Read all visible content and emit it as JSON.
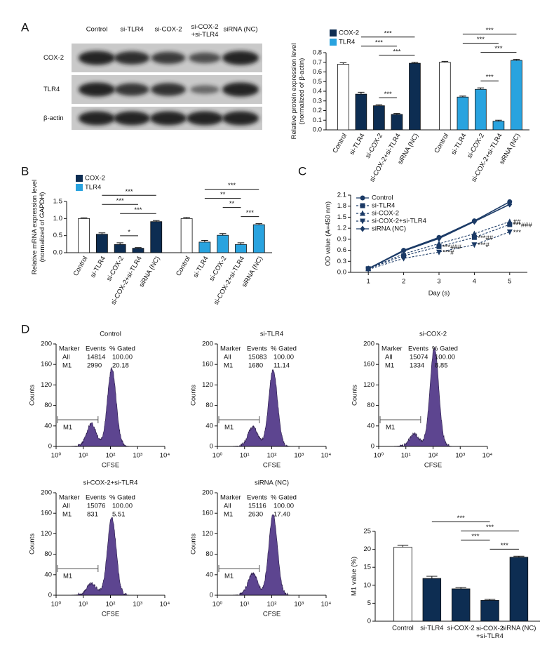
{
  "panel_labels": [
    "A",
    "B",
    "C",
    "D"
  ],
  "blot": {
    "columns": [
      "Control",
      "si-TLR4",
      "si-COX-2",
      "si-COX-2\n+si-TLR4",
      "siRNA (NC)"
    ],
    "rows": [
      "COX-2",
      "TLR4",
      "β-actin"
    ]
  },
  "chart_data": [
    {
      "type": "bar",
      "ylabel": "Relative protein expression level\n(normalized of β-actin)",
      "categories": [
        "Control",
        "si-TLR4",
        "si-COX-2",
        "si-COX-2+si-TLR4",
        "siRNA (NC)"
      ],
      "ylim": [
        0,
        0.8
      ],
      "yticks": [
        {
          "value": 0,
          "label": "0.0"
        },
        0.1,
        0.2,
        0.3,
        0.4,
        0.5,
        0.6,
        0.7,
        0.8
      ],
      "series": [
        {
          "name": "COX-2",
          "color": "#0d2d52",
          "colors": [
            "#ffffff",
            "#0d2d52",
            "#0d2d52",
            "#0d2d52",
            "#0d2d52"
          ],
          "values": [
            0.68,
            0.37,
            0.25,
            0.16,
            0.69
          ],
          "errors": [
            0.015,
            0.02,
            0.01,
            0.01,
            0.01
          ],
          "annotations": [
            {
              "text": "***",
              "span": [
                1,
                4
              ]
            },
            {
              "text": "***",
              "span": [
                2,
                4
              ]
            },
            {
              "text": "***",
              "span": [
                1,
                3
              ]
            },
            {
              "text": "***",
              "span": [
                2,
                3
              ]
            }
          ]
        },
        {
          "name": "TLR4",
          "color": "#29a3df",
          "colors": [
            "#ffffff",
            "#29a3df",
            "#29a3df",
            "#29a3df",
            "#29a3df"
          ],
          "values": [
            0.7,
            0.34,
            0.42,
            0.09,
            0.72
          ],
          "errors": [
            0.01,
            0.01,
            0.015,
            0.01,
            0.01
          ],
          "annotations": [
            {
              "text": "***",
              "span": [
                1,
                4
              ]
            },
            {
              "text": "***",
              "span": [
                2,
                4
              ]
            },
            {
              "text": "***",
              "span": [
                1,
                3
              ]
            },
            {
              "text": "***",
              "span": [
                2,
                3
              ]
            }
          ]
        }
      ]
    },
    {
      "type": "bar",
      "ylabel": "Relative mRNA expression level\n(normalized of GAPDH)",
      "categories": [
        "Control",
        "si-TLR4",
        "si-COX-2",
        "si-COX-2+si-TLR4",
        "siRNA (NC)"
      ],
      "ylim": [
        0,
        1.5
      ],
      "yticks": [
        {
          "value": 0,
          "label": "0.0"
        },
        0.5,
        {
          "value": 1,
          "label": "1.0"
        },
        1.5
      ],
      "series": [
        {
          "name": "COX-2",
          "color": "#0d2d52",
          "colors": [
            "#ffffff",
            "#0d2d52",
            "#0d2d52",
            "#0d2d52",
            "#0d2d52"
          ],
          "values": [
            1.0,
            0.54,
            0.24,
            0.13,
            0.91
          ],
          "errors": [
            0.02,
            0.04,
            0.05,
            0.02,
            0.03
          ],
          "annotations": [
            {
              "text": "***",
              "span": [
                1,
                4
              ]
            },
            {
              "text": "***",
              "span": [
                2,
                4
              ]
            },
            {
              "text": "***",
              "span": [
                1,
                3
              ]
            },
            {
              "text": "*",
              "span": [
                2,
                3
              ]
            }
          ]
        },
        {
          "name": "TLR4",
          "color": "#29a3df",
          "colors": [
            "#ffffff",
            "#29a3df",
            "#29a3df",
            "#29a3df",
            "#29a3df"
          ],
          "values": [
            1.0,
            0.31,
            0.51,
            0.24,
            0.82
          ],
          "errors": [
            0.03,
            0.05,
            0.05,
            0.05,
            0.03
          ],
          "annotations": [
            {
              "text": "***",
              "span": [
                1,
                4
              ]
            },
            {
              "text": "***",
              "span": [
                3,
                4
              ]
            },
            {
              "text": "**",
              "span": [
                1,
                3
              ]
            },
            {
              "text": "**",
              "span": [
                2,
                3
              ]
            }
          ]
        }
      ]
    },
    {
      "type": "line",
      "xlabel": "Day (s)",
      "ylabel": "OD value (A=450 nm)",
      "x": [
        1,
        2,
        3,
        4,
        5
      ],
      "xlim": [
        0.5,
        5.5
      ],
      "xticks": [
        1,
        2,
        3,
        4,
        5
      ],
      "ylim": [
        0,
        2.1
      ],
      "yticks": [
        {
          "value": 0,
          "label": "0.0"
        },
        0.3,
        0.6,
        0.9,
        1.2,
        1.5,
        1.8,
        2.1
      ],
      "series": [
        {
          "name": "Control",
          "color": "#1b3a66",
          "marker": "circle",
          "dashed": false,
          "values": [
            0.1,
            0.6,
            0.95,
            1.4,
            1.92
          ],
          "errors": [
            0.03,
            0.05,
            0.06,
            0.05,
            0.04
          ]
        },
        {
          "name": "si-TLR4",
          "color": "#1b3a66",
          "marker": "square",
          "dashed": true,
          "values": [
            0.1,
            0.45,
            0.7,
            0.95,
            1.3
          ],
          "errors": [
            0.03,
            0.04,
            0.05,
            0.05,
            0.05
          ]
        },
        {
          "name": "si-COX-2",
          "color": "#1b3a66",
          "marker": "triangle",
          "dashed": true,
          "values": [
            0.1,
            0.5,
            0.78,
            1.05,
            1.38
          ],
          "errors": [
            0.03,
            0.04,
            0.05,
            0.05,
            0.05
          ]
        },
        {
          "name": "si-COX-2+si-TLR4",
          "color": "#1b3a66",
          "marker": "triangle-down",
          "dashed": true,
          "values": [
            0.08,
            0.38,
            0.55,
            0.75,
            1.1
          ],
          "errors": [
            0.03,
            0.04,
            0.04,
            0.05,
            0.05
          ]
        },
        {
          "name": "siRNA (NC)",
          "color": "#1b3a66",
          "marker": "diamond",
          "dashed": false,
          "values": [
            0.1,
            0.58,
            0.92,
            1.38,
            1.85
          ],
          "errors": [
            0.03,
            0.05,
            0.05,
            0.05,
            0.04
          ]
        }
      ],
      "annotations": [
        {
          "text": "***###",
          "series": 1,
          "index": 2
        },
        {
          "text": "***#",
          "series": 3,
          "index": 2
        },
        {
          "text": "***##",
          "series": 1,
          "index": 3
        },
        {
          "text": "***#",
          "series": 3,
          "index": 3
        },
        {
          "text": "***###",
          "series": 1,
          "index": 4
        },
        {
          "text": "##",
          "series": 2,
          "index": 4
        },
        {
          "text": "***",
          "series": 3,
          "index": 4
        }
      ]
    },
    {
      "type": "bar",
      "ylabel": "M1 value (%)",
      "categories": [
        "Control",
        "si-TLR4",
        "si-COX-2",
        "si-COX-2\n+si-TLR4",
        "siRNA (NC)"
      ],
      "ylim": [
        0,
        25
      ],
      "yticks": [
        0,
        5,
        10,
        15,
        20,
        25
      ],
      "colors": [
        "#ffffff",
        "#0d2d52",
        "#0d2d52",
        "#0d2d52",
        "#0d2d52"
      ],
      "values": [
        20.6,
        11.9,
        9.0,
        5.8,
        17.8
      ],
      "errors": [
        0.5,
        0.6,
        0.4,
        0.3,
        0.3
      ],
      "annotations": [
        {
          "text": "***",
          "span": [
            2,
            4
          ]
        },
        {
          "text": "***",
          "span": [
            3,
            4
          ]
        },
        {
          "text": "***",
          "span": [
            1,
            3
          ]
        },
        {
          "text": "***",
          "span": [
            2,
            3
          ]
        }
      ]
    }
  ],
  "flow": {
    "xlabel": "CFSE",
    "ylabel": "Counts",
    "xscale": "log",
    "color": "#5d4590",
    "xlim": [
      1,
      10000
    ],
    "xticks": [
      {
        "value": 1,
        "label": "10⁰"
      },
      {
        "value": 10,
        "label": "10¹"
      },
      {
        "value": 100,
        "label": "10²"
      },
      {
        "value": 1000,
        "label": "10³"
      },
      {
        "value": 10000,
        "label": "10⁴"
      }
    ],
    "ylim": [
      0,
      200
    ],
    "yticks": [
      0,
      40,
      80,
      120,
      160,
      200
    ],
    "table_header": [
      "Marker",
      "Events",
      "% Gated"
    ],
    "plots": [
      {
        "title": "Control",
        "gate": "M1",
        "table": [
          [
            "All",
            "14814",
            "100.00"
          ],
          [
            "M1",
            "2990",
            "20.18"
          ]
        ]
      },
      {
        "title": "si-TLR4",
        "gate": "M1",
        "table": [
          [
            "All",
            "15083",
            "100.00"
          ],
          [
            "M1",
            "1680",
            "11.14"
          ]
        ]
      },
      {
        "title": "si-COX-2",
        "gate": "M1",
        "table": [
          [
            "All",
            "15074",
            "100.00"
          ],
          [
            "M1",
            "1334",
            "8.85"
          ]
        ]
      },
      {
        "title": "si-COX-2+si-TLR4",
        "gate": "M1",
        "table": [
          [
            "All",
            "15076",
            "100.00"
          ],
          [
            "M1",
            "831",
            "5.51"
          ]
        ]
      },
      {
        "title": "siRNA (NC)",
        "gate": "M1",
        "table": [
          [
            "All",
            "15116",
            "100.00"
          ],
          [
            "M1",
            "2630",
            "17.40"
          ]
        ]
      }
    ]
  }
}
